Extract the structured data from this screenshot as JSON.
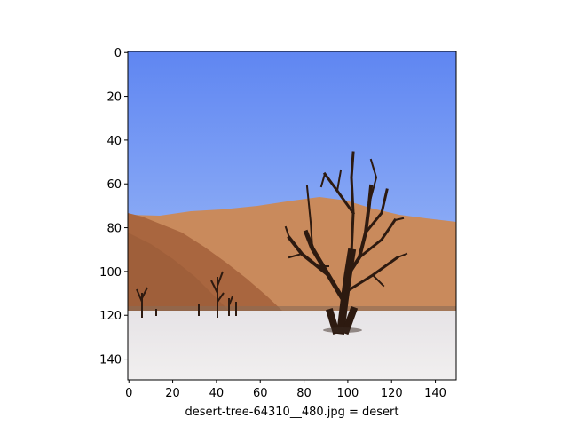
{
  "figure": {
    "xlabel": "desert-tree-64310__480.jpg = desert"
  },
  "axes": {
    "x_ticks": [
      "0",
      "20",
      "40",
      "60",
      "80",
      "100",
      "120",
      "140"
    ],
    "y_ticks": [
      "0",
      "20",
      "40",
      "60",
      "80",
      "100",
      "120",
      "140"
    ],
    "x_tick_values": [
      0,
      20,
      40,
      60,
      80,
      100,
      120,
      140
    ],
    "y_tick_values": [
      0,
      20,
      40,
      60,
      80,
      100,
      120,
      140
    ],
    "xlim": [
      -0.5,
      149.5
    ],
    "ylim": [
      149.5,
      -0.5
    ],
    "grid": false
  },
  "image": {
    "description_colors": {
      "sky_top": "#5f86f2",
      "sky_bottom": "#86a8f5",
      "dune_light": "#c98656",
      "dune_dark": "#a9673f",
      "ground": "#ece9ea",
      "tree": "#2d1a10"
    }
  }
}
